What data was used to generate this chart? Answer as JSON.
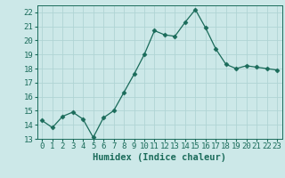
{
  "x": [
    0,
    1,
    2,
    3,
    4,
    5,
    6,
    7,
    8,
    9,
    10,
    11,
    12,
    13,
    14,
    15,
    16,
    17,
    18,
    19,
    20,
    21,
    22,
    23
  ],
  "y": [
    14.3,
    13.8,
    14.6,
    14.9,
    14.4,
    13.1,
    14.5,
    15.0,
    16.3,
    17.6,
    19.0,
    20.7,
    20.4,
    20.3,
    21.3,
    22.2,
    20.9,
    19.4,
    18.3,
    18.0,
    18.2,
    18.1,
    18.0,
    17.9
  ],
  "line_color": "#1a6b5a",
  "marker": "D",
  "marker_size": 2.5,
  "bg_color": "#cce8e8",
  "grid_color": "#b0d4d4",
  "xlabel": "Humidex (Indice chaleur)",
  "ylim": [
    13,
    22.5
  ],
  "xlim": [
    -0.5,
    23.5
  ],
  "yticks": [
    13,
    14,
    15,
    16,
    17,
    18,
    19,
    20,
    21,
    22
  ],
  "xticks": [
    0,
    1,
    2,
    3,
    4,
    5,
    6,
    7,
    8,
    9,
    10,
    11,
    12,
    13,
    14,
    15,
    16,
    17,
    18,
    19,
    20,
    21,
    22,
    23
  ],
  "tick_label_color": "#1a6b5a",
  "xlabel_color": "#1a6b5a",
  "xlabel_fontsize": 7.5,
  "tick_fontsize": 6.5
}
